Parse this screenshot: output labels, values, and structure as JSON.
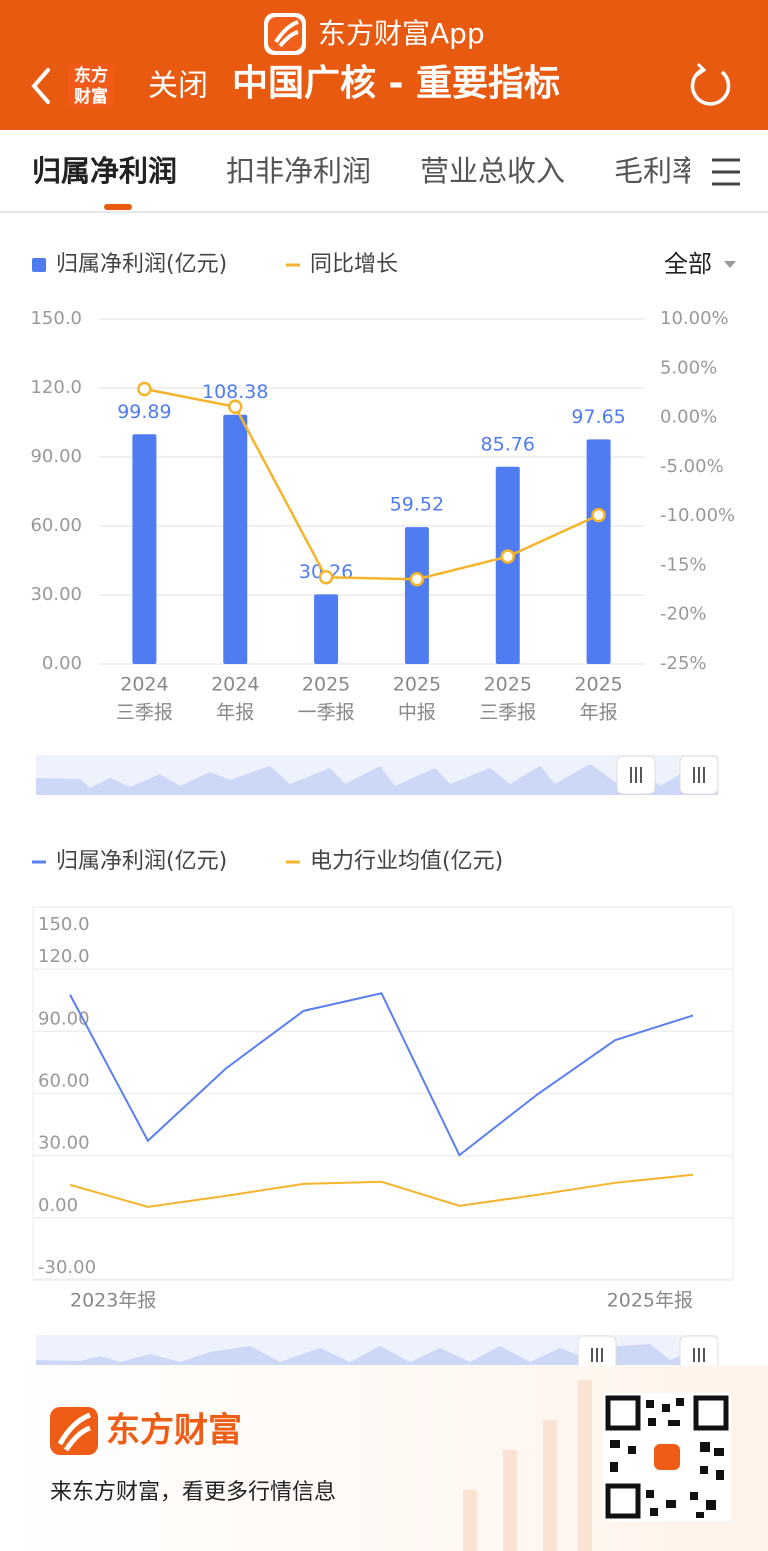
{
  "header": {
    "app_name": "东方财富App",
    "logo_lines": [
      "东方",
      "财富"
    ],
    "close": "关闭",
    "title": "中国广核 - 重要指标"
  },
  "tabs": [
    "归属净利润",
    "扣非净利润",
    "营业总收入",
    "毛利率"
  ],
  "filter": "全部",
  "chart_data": [
    {
      "type": "bar",
      "categories": [
        [
          "2024",
          "三季报"
        ],
        [
          "2024",
          "年报"
        ],
        [
          "2025",
          "一季报"
        ],
        [
          "2025",
          "中报"
        ],
        [
          "2025",
          "三季报"
        ],
        [
          "2025",
          "年报"
        ]
      ],
      "series": [
        {
          "name": "归属净利润(亿元)",
          "type": "bar",
          "color": "#4f7cf0",
          "values": [
            99.89,
            108.38,
            30.26,
            59.52,
            85.76,
            97.65
          ]
        },
        {
          "name": "同比增长",
          "type": "line",
          "axis": "y2",
          "color": "#f6b42c",
          "values": [
            2.9,
            1.1,
            -16.2,
            -16.4,
            -14.1,
            -9.9
          ]
        }
      ],
      "ylim": [
        0,
        150
      ],
      "yticks": [
        {
          "value": 0,
          "label": "0.00"
        },
        {
          "value": 30,
          "label": "30.00"
        },
        {
          "value": 60,
          "label": "60.00"
        },
        {
          "value": 90,
          "label": "90.00"
        },
        {
          "value": 120,
          "label": "120.0"
        },
        {
          "value": 150,
          "label": "150.0"
        }
      ],
      "y2lim": [
        -25,
        10
      ],
      "y2ticks": [
        {
          "value": 10,
          "label": "10.00%"
        },
        {
          "value": 5,
          "label": "5.00%"
        },
        {
          "value": 0,
          "label": "0.00%"
        },
        {
          "value": -5,
          "label": "-5.00%"
        },
        {
          "value": -10,
          "label": "-10.00%"
        },
        {
          "value": -15,
          "label": "-15%"
        },
        {
          "value": -20,
          "label": "-20%"
        },
        {
          "value": -25,
          "label": "-25%"
        }
      ],
      "grid": true
    },
    {
      "type": "line",
      "categories": [
        "2023年报",
        null,
        null,
        null,
        null,
        null,
        null,
        null,
        "2025年报"
      ],
      "series": [
        {
          "name": "归属净利润(亿元)",
          "color": "#5b7ff0",
          "values": [
            107.7,
            37.2,
            72.0,
            99.89,
            108.38,
            30.26,
            59.52,
            85.76,
            97.65
          ]
        },
        {
          "name": "电力行业均值(亿元)",
          "color": "#f6b42c",
          "values": [
            15.9,
            5.3,
            10.6,
            16.4,
            17.4,
            5.8,
            11.1,
            16.9,
            20.8
          ]
        }
      ],
      "ylim": [
        -30,
        150
      ],
      "yticks": [
        {
          "value": -30,
          "label": "-30.00"
        },
        {
          "value": 0,
          "label": "0.00"
        },
        {
          "value": 30,
          "label": "30.00"
        },
        {
          "value": 60,
          "label": "60.00"
        },
        {
          "value": 90,
          "label": "90.00"
        },
        {
          "value": 120,
          "label": "120.0"
        },
        {
          "value": 150,
          "label": "150.0"
        }
      ],
      "grid": true
    }
  ],
  "footer": {
    "brand": "东方财富",
    "slogan": "来东方财富，看更多行情信息"
  }
}
